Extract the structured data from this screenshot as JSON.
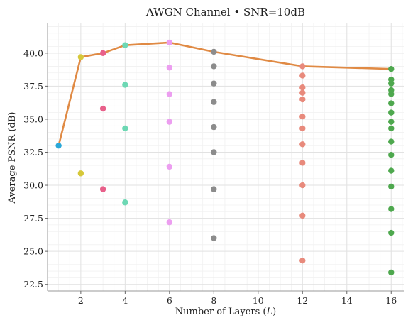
{
  "chart_data": {
    "type": "scatter",
    "title": "AWGN Channel • SNR=10dB",
    "xlabel_prefix": "Number of Layers (",
    "xlabel_var": "L",
    "xlabel_suffix": ")",
    "ylabel": "Average PSNR (dB)",
    "xlim": [
      0.5,
      16.6
    ],
    "ylim": [
      22.0,
      42.3
    ],
    "xticks": [
      2,
      4,
      6,
      8,
      10,
      12,
      14,
      16
    ],
    "yticks": [
      22.5,
      25.0,
      27.5,
      30.0,
      32.5,
      35.0,
      37.5,
      40.0
    ],
    "ytick_labels": [
      "22.5",
      "25.0",
      "27.5",
      "30.0",
      "32.5",
      "35.0",
      "37.5",
      "40.0"
    ],
    "grid": true,
    "series": [
      {
        "color": "#2aa8d8",
        "points": [
          [
            1,
            33.0
          ]
        ]
      },
      {
        "color": "#d6c83a",
        "points": [
          [
            2,
            39.7
          ],
          [
            2,
            30.9
          ]
        ]
      },
      {
        "color": "#e8608a",
        "points": [
          [
            3,
            40.0
          ],
          [
            3,
            35.8
          ],
          [
            3,
            29.7
          ]
        ]
      },
      {
        "color": "#6dd8b4",
        "points": [
          [
            4,
            40.6
          ],
          [
            4,
            37.6
          ],
          [
            4,
            34.3
          ],
          [
            4,
            28.7
          ]
        ]
      },
      {
        "color": "#ec9ef0",
        "points": [
          [
            6,
            40.8
          ],
          [
            6,
            38.9
          ],
          [
            6,
            36.9
          ],
          [
            6,
            34.8
          ],
          [
            6,
            31.4
          ],
          [
            6,
            27.2
          ]
        ]
      },
      {
        "color": "#8c8c8c",
        "points": [
          [
            8,
            40.1
          ],
          [
            8,
            39.0
          ],
          [
            8,
            37.7
          ],
          [
            8,
            36.3
          ],
          [
            8,
            34.4
          ],
          [
            8,
            32.5
          ],
          [
            8,
            29.7
          ],
          [
            8,
            26.0
          ]
        ]
      },
      {
        "color": "#e88a7c",
        "points": [
          [
            12,
            39.0
          ],
          [
            12,
            38.3
          ],
          [
            12,
            37.4
          ],
          [
            12,
            37.0
          ],
          [
            12,
            36.5
          ],
          [
            12,
            35.2
          ],
          [
            12,
            34.3
          ],
          [
            12,
            33.1
          ],
          [
            12,
            31.7
          ],
          [
            12,
            30.0
          ],
          [
            12,
            27.7
          ],
          [
            12,
            24.3
          ]
        ]
      },
      {
        "color": "#4ea84e",
        "points": [
          [
            16,
            38.8
          ],
          [
            16,
            38.0
          ],
          [
            16,
            37.7
          ],
          [
            16,
            37.2
          ],
          [
            16,
            36.9
          ],
          [
            16,
            36.2
          ],
          [
            16,
            35.5
          ],
          [
            16,
            34.8
          ],
          [
            16,
            34.3
          ],
          [
            16,
            33.3
          ],
          [
            16,
            32.3
          ],
          [
            16,
            31.1
          ],
          [
            16,
            29.9
          ],
          [
            16,
            28.2
          ],
          [
            16,
            26.4
          ],
          [
            16,
            23.4
          ]
        ]
      }
    ],
    "best_line": {
      "color": "#e08a44",
      "x": [
        1,
        2,
        3,
        4,
        6,
        8,
        12,
        16
      ],
      "y": [
        33.0,
        39.7,
        40.0,
        40.6,
        40.8,
        40.1,
        39.0,
        38.8
      ]
    }
  }
}
